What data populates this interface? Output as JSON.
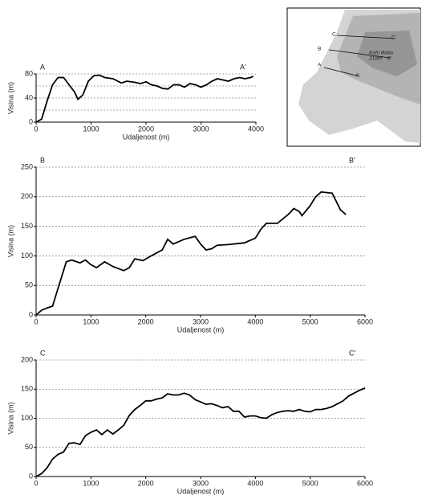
{
  "chart_data": [
    {
      "type": "line",
      "start_label": "A",
      "end_label": "A'",
      "x_label": "Udaljenost (m)",
      "y_label": "Visina (m)",
      "xlim": [
        0,
        4000
      ],
      "xticks": [
        0,
        1000,
        2000,
        3000,
        4000
      ],
      "ylim": [
        0,
        80
      ],
      "yticks": [
        0,
        40,
        80
      ],
      "minor_yticks": [
        20,
        60
      ],
      "grid": true,
      "x": [
        0,
        100,
        200,
        300,
        400,
        500,
        600,
        700,
        760,
        850,
        950,
        1050,
        1150,
        1250,
        1400,
        1550,
        1650,
        1800,
        1900,
        2000,
        2100,
        2200,
        2300,
        2400,
        2500,
        2600,
        2700,
        2800,
        2900,
        3000,
        3100,
        3200,
        3300,
        3400,
        3500,
        3600,
        3700,
        3800,
        3900,
        3950
      ],
      "values": [
        0,
        5,
        35,
        62,
        74,
        74,
        62,
        50,
        38,
        45,
        68,
        77,
        78,
        74,
        72,
        65,
        68,
        66,
        64,
        67,
        62,
        60,
        56,
        55,
        62,
        62,
        58,
        64,
        62,
        58,
        62,
        68,
        72,
        70,
        68,
        72,
        74,
        72,
        74,
        76
      ],
      "color": "#000000"
    },
    {
      "type": "line",
      "start_label": "B",
      "end_label": "B'",
      "x_label": "Udaljenost (m)",
      "y_label": "Visina (m)",
      "xlim": [
        0,
        6000
      ],
      "xticks": [
        0,
        1000,
        2000,
        3000,
        4000,
        5000,
        6000
      ],
      "ylim": [
        0,
        250
      ],
      "yticks": [
        0,
        50,
        100,
        150,
        200,
        250
      ],
      "grid": true,
      "x": [
        0,
        100,
        200,
        300,
        400,
        500,
        550,
        650,
        800,
        900,
        1000,
        1100,
        1250,
        1400,
        1600,
        1700,
        1800,
        1950,
        2100,
        2200,
        2300,
        2400,
        2500,
        2700,
        2900,
        3000,
        3100,
        3200,
        3300,
        3500,
        3800,
        4000,
        4100,
        4200,
        4400,
        4600,
        4700,
        4800,
        4850,
        5000,
        5100,
        5200,
        5400,
        5550,
        5650
      ],
      "values": [
        0,
        8,
        12,
        15,
        45,
        75,
        90,
        93,
        88,
        93,
        85,
        80,
        90,
        82,
        75,
        80,
        95,
        92,
        100,
        105,
        110,
        128,
        120,
        128,
        133,
        120,
        110,
        112,
        118,
        119,
        122,
        130,
        145,
        155,
        155,
        170,
        180,
        175,
        168,
        185,
        200,
        208,
        206,
        178,
        170
      ],
      "color": "#000000"
    },
    {
      "type": "line",
      "start_label": "C",
      "end_label": "C'",
      "x_label": "Udaljenost (m)",
      "y_label": "Visina (m)",
      "xlim": [
        0,
        6000
      ],
      "xticks": [
        0,
        1000,
        2000,
        3000,
        4000,
        5000,
        6000
      ],
      "ylim": [
        0,
        200
      ],
      "yticks": [
        0,
        50,
        100,
        150,
        200
      ],
      "grid": true,
      "x": [
        0,
        100,
        200,
        300,
        400,
        500,
        600,
        700,
        800,
        900,
        1000,
        1100,
        1200,
        1300,
        1400,
        1500,
        1600,
        1700,
        1800,
        1900,
        2000,
        2100,
        2200,
        2300,
        2400,
        2500,
        2600,
        2700,
        2800,
        2900,
        3000,
        3100,
        3200,
        3300,
        3400,
        3500,
        3600,
        3700,
        3800,
        3900,
        4000,
        4100,
        4200,
        4300,
        4400,
        4500,
        4600,
        4700,
        4800,
        4900,
        5000,
        5100,
        5200,
        5300,
        5400,
        5500,
        5600,
        5700,
        5800,
        5900,
        6000
      ],
      "values": [
        0,
        5,
        15,
        30,
        38,
        42,
        57,
        58,
        55,
        70,
        76,
        80,
        72,
        80,
        73,
        80,
        88,
        105,
        115,
        122,
        130,
        130,
        133,
        135,
        142,
        140,
        140,
        143,
        140,
        132,
        128,
        124,
        125,
        122,
        118,
        120,
        112,
        112,
        102,
        104,
        104,
        101,
        100,
        106,
        110,
        112,
        113,
        112,
        115,
        112,
        111,
        115,
        115,
        117,
        120,
        125,
        130,
        138,
        143,
        148,
        152
      ],
      "color": "#000000"
    }
  ],
  "map": {
    "labels": [
      "C",
      "C'",
      "B",
      "Kohi Baba",
      "218m",
      "B'",
      "A",
      "A'"
    ]
  }
}
